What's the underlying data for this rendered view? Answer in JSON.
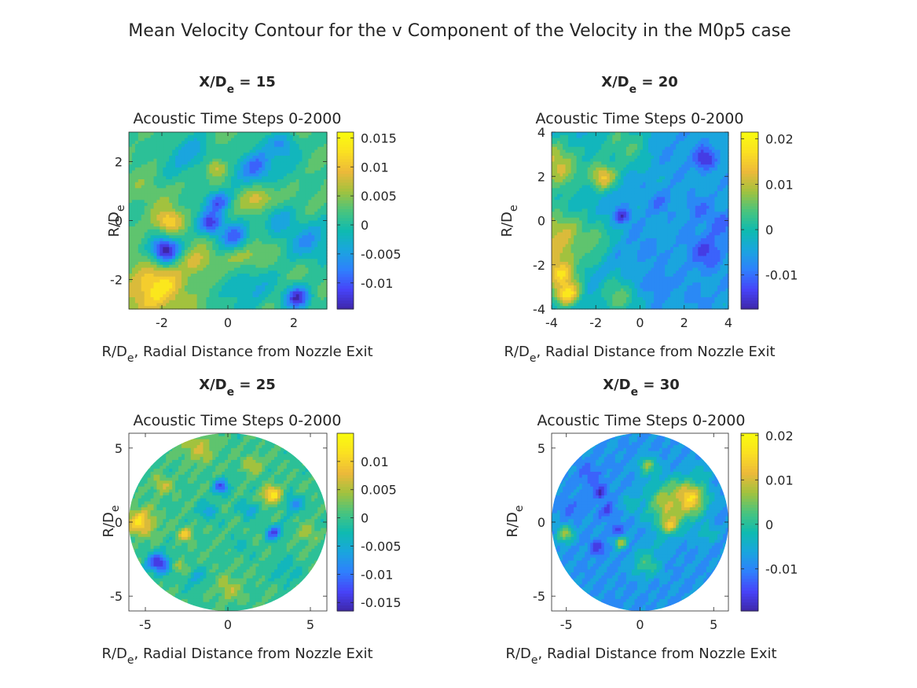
{
  "figure": {
    "suptitle": "Mean Velocity Contour for the v Component of the Velocity in the M0p5 case"
  },
  "palette": {
    "colormap": "parula",
    "stops": [
      "#3e26a8",
      "#4743f8",
      "#2f80fd",
      "#1aa5de",
      "#0fbbb0",
      "#49c47e",
      "#a2c23e",
      "#edb93a",
      "#fbe022",
      "#f9fb0e"
    ],
    "axis_color": "#262626",
    "background": "#ffffff"
  },
  "chart_data": [
    {
      "type": "heatmap",
      "title_main": "X/D",
      "title_sub": "e",
      "title_tail": " = 15",
      "subtitle": "Acoustic Time Steps 0-2000",
      "ylabel_main": "R/D",
      "ylabel_sub": "e",
      "xlabel_main": "R/D",
      "xlabel_sub": "e",
      "xlabel_tail": ", Radial Distance from Nozzle Exit",
      "shape": "square",
      "xlim": [
        -3,
        3
      ],
      "ylim": [
        -3,
        3
      ],
      "xticks": [
        -2,
        0,
        2
      ],
      "xtick_labels": [
        "-2",
        "0",
        "2"
      ],
      "yticks": [
        -2,
        0,
        2
      ],
      "ytick_labels": [
        "-2",
        "0",
        "2"
      ],
      "clim": [
        -0.0145,
        0.016
      ],
      "cticks": [
        0.015,
        0.01,
        0.005,
        0,
        -0.005,
        -0.01
      ],
      "ctick_labels": [
        "0.015",
        "0.01",
        "0.005",
        "0",
        "-0.005",
        "-0.01"
      ],
      "base_value": 0.002,
      "blobs": [
        {
          "x": -2.2,
          "y": -2.3,
          "r": 0.9,
          "v": 0.013
        },
        {
          "x": -1.9,
          "y": -1.0,
          "r": 0.45,
          "v": -0.014
        },
        {
          "x": -1.8,
          "y": 0.0,
          "r": 0.4,
          "v": 0.012
        },
        {
          "x": -2.3,
          "y": 0.9,
          "r": 0.6,
          "v": 0.004
        },
        {
          "x": 2.1,
          "y": -2.6,
          "r": 0.4,
          "v": -0.013
        },
        {
          "x": 1.0,
          "y": 0.65,
          "r": 0.5,
          "v": 0.011
        },
        {
          "x": 0.5,
          "y": -1.2,
          "r": 0.55,
          "v": 0.009
        },
        {
          "x": -0.3,
          "y": 0.6,
          "r": 0.4,
          "v": -0.01
        },
        {
          "x": -0.5,
          "y": -0.1,
          "r": 0.4,
          "v": -0.012
        },
        {
          "x": 0.9,
          "y": 1.8,
          "r": 0.6,
          "v": -0.009
        },
        {
          "x": 1.7,
          "y": 2.5,
          "r": 0.5,
          "v": -0.006
        },
        {
          "x": -0.4,
          "y": 1.8,
          "r": 0.3,
          "v": 0.011
        },
        {
          "x": 2.5,
          "y": -0.7,
          "r": 0.7,
          "v": -0.005
        },
        {
          "x": 0.2,
          "y": -0.5,
          "r": 0.5,
          "v": -0.008
        },
        {
          "x": 1.6,
          "y": 0.0,
          "r": 0.6,
          "v": -0.004
        },
        {
          "x": -0.9,
          "y": -1.5,
          "r": 0.5,
          "v": 0.008
        },
        {
          "x": -1.2,
          "y": 2.2,
          "r": 0.7,
          "v": -0.004
        },
        {
          "x": 0.6,
          "y": -2.3,
          "r": 0.8,
          "v": -0.003
        }
      ]
    },
    {
      "type": "heatmap",
      "title_main": "X/D",
      "title_sub": "e",
      "title_tail": " = 20",
      "subtitle": "Acoustic Time Steps 0-2000",
      "ylabel_main": "R/D",
      "ylabel_sub": "e",
      "xlabel_main": "R/D",
      "xlabel_sub": "e",
      "xlabel_tail": ", Radial Distance from Nozzle Exit",
      "shape": "square",
      "xlim": [
        -4,
        4
      ],
      "ylim": [
        -4,
        4
      ],
      "xticks": [
        -4,
        -2,
        0,
        2,
        4
      ],
      "xtick_labels": [
        "-4",
        "-2",
        "0",
        "2",
        "4"
      ],
      "yticks": [
        4,
        2,
        0,
        -2,
        -4
      ],
      "ytick_labels": [
        "4",
        "2",
        "0",
        "-2",
        "-4"
      ],
      "clim": [
        -0.0175,
        0.0215
      ],
      "cticks": [
        0.02,
        0.01,
        0,
        -0.01
      ],
      "ctick_labels": [
        "0.02",
        "0.01",
        "0",
        "-0.01"
      ],
      "base_value": -0.005,
      "blobs": [
        {
          "x": -3.8,
          "y": -1.0,
          "r": 1.6,
          "v": 0.012
        },
        {
          "x": -3.8,
          "y": 2.5,
          "r": 1.2,
          "v": 0.011
        },
        {
          "x": -3.3,
          "y": -3.3,
          "r": 0.6,
          "v": 0.019
        },
        {
          "x": -1.7,
          "y": 2.0,
          "r": 0.6,
          "v": 0.016
        },
        {
          "x": -3.6,
          "y": -2.4,
          "r": 0.6,
          "v": 0.017
        },
        {
          "x": -0.8,
          "y": 3.4,
          "r": 1.2,
          "v": 0.004
        },
        {
          "x": 2.9,
          "y": 2.8,
          "r": 0.5,
          "v": -0.016
        },
        {
          "x": 3.0,
          "y": -1.4,
          "r": 0.8,
          "v": -0.013
        },
        {
          "x": -0.8,
          "y": 0.2,
          "r": 0.35,
          "v": -0.015
        },
        {
          "x": 0.9,
          "y": 0.8,
          "r": 0.5,
          "v": -0.009
        },
        {
          "x": 2.6,
          "y": 0.5,
          "r": 0.5,
          "v": -0.01
        },
        {
          "x": 0.8,
          "y": -2.8,
          "r": 0.6,
          "v": -0.01
        },
        {
          "x": 2.5,
          "y": -3.4,
          "r": 0.5,
          "v": -0.008
        },
        {
          "x": 1.5,
          "y": 3.0,
          "r": 0.7,
          "v": -0.006
        },
        {
          "x": 0.2,
          "y": -1.3,
          "r": 0.6,
          "v": -0.008
        },
        {
          "x": -2.1,
          "y": -0.8,
          "r": 0.7,
          "v": 0.006
        },
        {
          "x": -1.0,
          "y": -3.5,
          "r": 0.8,
          "v": 0.006
        },
        {
          "x": 3.6,
          "y": -0.2,
          "r": 0.6,
          "v": -0.011
        }
      ]
    },
    {
      "type": "heatmap",
      "title_main": "X/D",
      "title_sub": "e",
      "title_tail": " = 25",
      "subtitle": "Acoustic Time Steps 0-2000",
      "ylabel_main": "R/D",
      "ylabel_sub": "e",
      "xlabel_main": "R/D",
      "xlabel_sub": "e",
      "xlabel_tail": ", Radial Distance from Nozzle Exit",
      "shape": "circle",
      "radius": 6,
      "xlim": [
        -6,
        6
      ],
      "ylim": [
        -6,
        6
      ],
      "xticks": [
        -5,
        0,
        5
      ],
      "xtick_labels": [
        "-5",
        "0",
        "5"
      ],
      "yticks": [
        5,
        0,
        -5
      ],
      "ytick_labels": [
        "5",
        "0",
        "-5"
      ],
      "clim": [
        -0.0165,
        0.015
      ],
      "cticks": [
        0.01,
        0.005,
        0,
        -0.005,
        -0.01,
        -0.015
      ],
      "ctick_labels": [
        "0.01",
        "0.005",
        "0",
        "-0.005",
        "-0.01",
        "-0.015"
      ],
      "base_value": 0.0,
      "blobs": [
        {
          "x": -5.3,
          "y": 0.0,
          "r": 0.9,
          "v": 0.011
        },
        {
          "x": 2.7,
          "y": 1.8,
          "r": 0.6,
          "v": 0.012
        },
        {
          "x": -1.8,
          "y": 5.0,
          "r": 1.0,
          "v": 0.006
        },
        {
          "x": -4.2,
          "y": -2.8,
          "r": 0.7,
          "v": -0.015
        },
        {
          "x": -0.4,
          "y": 2.4,
          "r": 0.5,
          "v": -0.012
        },
        {
          "x": 2.8,
          "y": -0.7,
          "r": 0.5,
          "v": -0.013
        },
        {
          "x": -2.6,
          "y": -0.8,
          "r": 0.4,
          "v": 0.01
        },
        {
          "x": 1.5,
          "y": 3.9,
          "r": 0.6,
          "v": 0.006
        },
        {
          "x": -4.0,
          "y": 2.5,
          "r": 0.6,
          "v": 0.006
        },
        {
          "x": 0.0,
          "y": -4.5,
          "r": 0.8,
          "v": 0.005
        },
        {
          "x": -1.2,
          "y": 0.7,
          "r": 0.6,
          "v": -0.006
        },
        {
          "x": 1.3,
          "y": 0.8,
          "r": 0.6,
          "v": -0.006
        },
        {
          "x": 4.0,
          "y": 1.2,
          "r": 0.6,
          "v": -0.008
        },
        {
          "x": 3.5,
          "y": -3.3,
          "r": 0.8,
          "v": -0.004
        },
        {
          "x": -2.0,
          "y": -3.7,
          "r": 0.7,
          "v": -0.005
        },
        {
          "x": 0.8,
          "y": -1.6,
          "r": 0.6,
          "v": -0.003
        },
        {
          "x": -2.8,
          "y": -3.0,
          "r": 0.5,
          "v": 0.004
        },
        {
          "x": 4.8,
          "y": -0.8,
          "r": 0.6,
          "v": 0.005
        }
      ]
    },
    {
      "type": "heatmap",
      "title_main": "X/D",
      "title_sub": "e",
      "title_tail": " = 30",
      "subtitle": "Acoustic Time Steps 0-2000",
      "ylabel_main": "R/D",
      "ylabel_sub": "e",
      "xlabel_main": "R/D",
      "xlabel_sub": "e",
      "xlabel_tail": ", Radial Distance from Nozzle Exit",
      "shape": "circle",
      "radius": 6,
      "xlim": [
        -6,
        6
      ],
      "ylim": [
        -6,
        6
      ],
      "xticks": [
        -5,
        0,
        5
      ],
      "xtick_labels": [
        "-5",
        "0",
        "5"
      ],
      "yticks": [
        5,
        0,
        -5
      ],
      "ytick_labels": [
        "5",
        "0",
        "-5"
      ],
      "clim": [
        -0.0195,
        0.0205
      ],
      "cticks": [
        0.02,
        0.01,
        0,
        -0.01
      ],
      "ctick_labels": [
        "0.02",
        "0.01",
        "0",
        "-0.01"
      ],
      "base_value": -0.008,
      "blobs": [
        {
          "x": 3.3,
          "y": 1.6,
          "r": 1.1,
          "v": 0.019
        },
        {
          "x": 2.0,
          "y": 1.2,
          "r": 1.5,
          "v": 0.009
        },
        {
          "x": 2.0,
          "y": -0.2,
          "r": 0.6,
          "v": 0.013
        },
        {
          "x": -2.7,
          "y": 2.0,
          "r": 0.5,
          "v": -0.018
        },
        {
          "x": -2.2,
          "y": 0.8,
          "r": 0.5,
          "v": -0.016
        },
        {
          "x": -1.5,
          "y": -0.5,
          "r": 0.4,
          "v": -0.016
        },
        {
          "x": -2.9,
          "y": -1.7,
          "r": 0.5,
          "v": -0.016
        },
        {
          "x": -1.3,
          "y": -1.4,
          "r": 0.4,
          "v": 0.009
        },
        {
          "x": 0.5,
          "y": 3.8,
          "r": 0.6,
          "v": 0.006
        },
        {
          "x": -5.1,
          "y": -0.8,
          "r": 0.6,
          "v": 0.006
        },
        {
          "x": 0.4,
          "y": -2.8,
          "r": 0.9,
          "v": 0.002
        },
        {
          "x": 4.5,
          "y": -0.8,
          "r": 0.7,
          "v": -0.002
        },
        {
          "x": -0.6,
          "y": 1.2,
          "r": 0.7,
          "v": -0.003
        },
        {
          "x": 1.2,
          "y": -1.5,
          "r": 0.7,
          "v": -0.004
        },
        {
          "x": -3.4,
          "y": 3.2,
          "r": 0.8,
          "v": -0.013
        },
        {
          "x": -4.8,
          "y": 1.0,
          "r": 0.7,
          "v": -0.012
        },
        {
          "x": 4.3,
          "y": 3.4,
          "r": 0.7,
          "v": -0.003
        }
      ]
    }
  ]
}
